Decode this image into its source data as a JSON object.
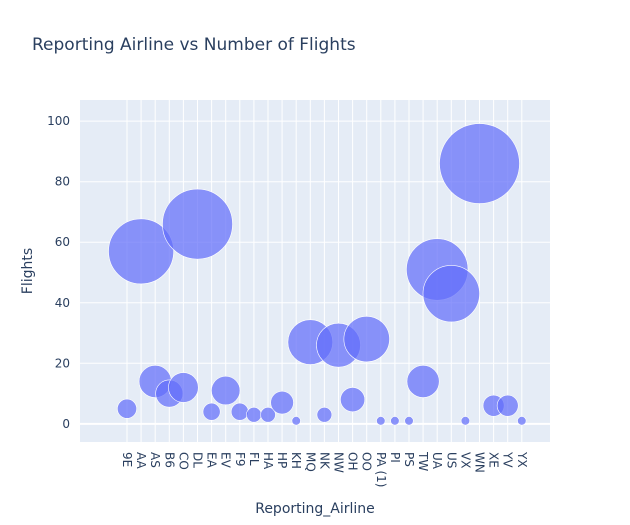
{
  "chart_data": {
    "type": "scatter",
    "title": "Reporting Airline vs Number of Flights",
    "xlabel": "Reporting_Airline",
    "ylabel": "Flights",
    "ylim": [
      -6,
      107
    ],
    "yticks": [
      0,
      20,
      40,
      60,
      80,
      100
    ],
    "grid": true,
    "legend": "none",
    "marker_color": "#636efa",
    "plot_bg": "#e5ecf6",
    "categories": [
      "9E",
      "AA",
      "AS",
      "B6",
      "CO",
      "DL",
      "EA",
      "EV",
      "F9",
      "FL",
      "HA",
      "HP",
      "KH",
      "MQ",
      "NK",
      "NW",
      "OH",
      "OO",
      "PA (1)",
      "PI",
      "PS",
      "TW",
      "UA",
      "US",
      "VX",
      "WN",
      "XE",
      "YV",
      "YX"
    ],
    "values": [
      5,
      57,
      14,
      10,
      12,
      66,
      4,
      11,
      4,
      3,
      3,
      7,
      1,
      27,
      3,
      26,
      8,
      28,
      1,
      1,
      1,
      14,
      51,
      43,
      1,
      86,
      6,
      6,
      1
    ]
  }
}
